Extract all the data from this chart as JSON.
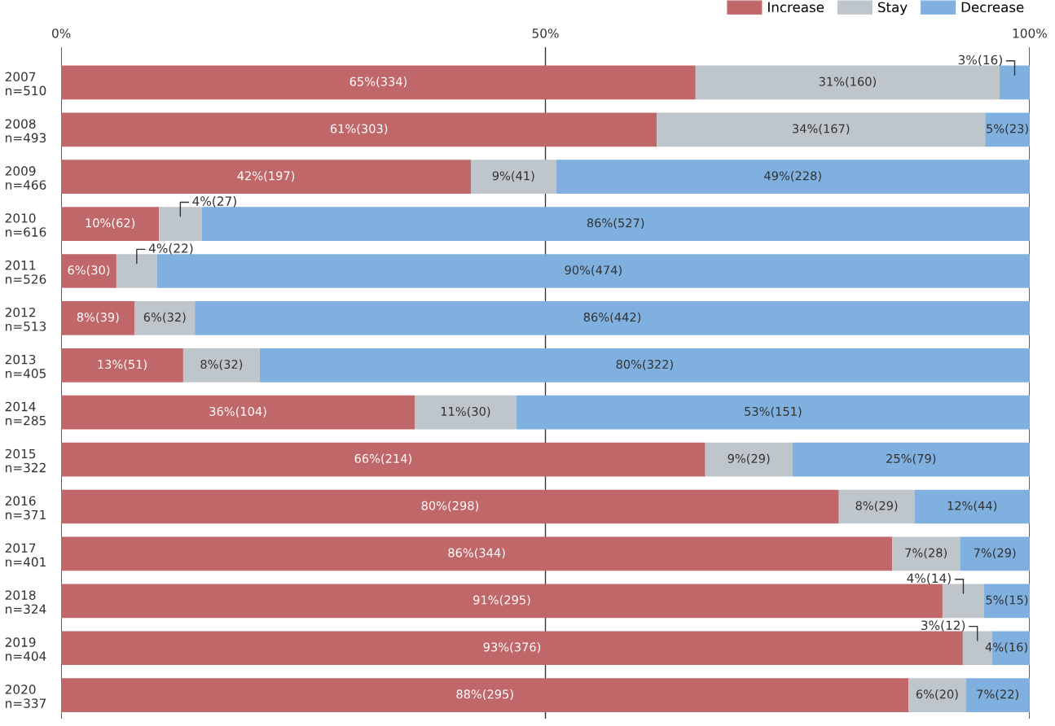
{
  "chart_data": {
    "type": "bar",
    "orientation": "horizontal",
    "stacked": true,
    "categories": [
      "2007\nn=510",
      "2008\nn=493",
      "2009\nn=466",
      "2010\nn=616",
      "2011\nn=526",
      "2012\nn=513",
      "2013\nn=405",
      "2014\nn=285",
      "2015\nn=322",
      "2016\nn=371",
      "2017\nn=401",
      "2018\nn=324",
      "2019\nn=404",
      "2020\nn=337"
    ],
    "series": [
      {
        "name": "Increase",
        "color": "#c0676a",
        "values": [
          65.5,
          61.5,
          42.3,
          10.1,
          5.7,
          7.6,
          12.6,
          36.5,
          66.5,
          80.3,
          85.8,
          91.0,
          93.1,
          87.5
        ],
        "value_labels": [
          "65%(334)",
          "61%(303)",
          "42%(197)",
          "10%(62)",
          "6%(30)",
          "8%(39)",
          "13%(51)",
          "36%(104)",
          "66%(214)",
          "80%(298)",
          "86%(344)",
          "91%(295)",
          "93%(376)",
          "88%(295)"
        ]
      },
      {
        "name": "Stay",
        "color": "#bec6cc",
        "values": [
          31.4,
          33.9,
          8.8,
          4.4,
          4.2,
          6.2,
          7.9,
          10.5,
          9.0,
          7.8,
          7.0,
          4.3,
          3.0,
          5.9
        ],
        "value_labels": [
          "31%(160)",
          "34%(167)",
          "9%(41)",
          "4%(27)",
          "4%(22)",
          "6%(32)",
          "8%(32)",
          "11%(30)",
          "9%(29)",
          "8%(29)",
          "7%(28)",
          "4%(14)",
          "3%(12)",
          "6%(20)"
        ]
      },
      {
        "name": "Decrease",
        "color": "#7fb0df",
        "values": [
          3.1,
          4.6,
          48.9,
          85.5,
          90.1,
          86.2,
          79.5,
          53.0,
          24.5,
          11.9,
          7.2,
          4.7,
          3.9,
          6.6
        ],
        "value_labels": [
          "3%(16)",
          "5%(23)",
          "49%(228)",
          "86%(527)",
          "90%(474)",
          "86%(442)",
          "80%(322)",
          "53%(151)",
          "25%(79)",
          "12%(44)",
          "7%(29)",
          "5%(15)",
          "4%(16)",
          "7%(22)"
        ]
      }
    ],
    "xlim": [
      0,
      100
    ],
    "xticks": [
      {
        "value": 0,
        "label": "0%"
      },
      {
        "value": 50,
        "label": "50%"
      },
      {
        "value": 100,
        "label": "100%"
      }
    ],
    "grid": "x",
    "legend": "top right"
  }
}
